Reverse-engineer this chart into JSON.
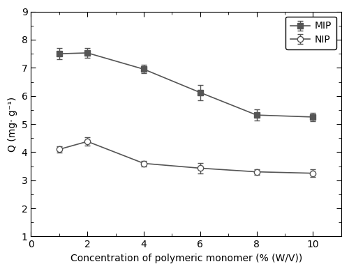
{
  "x": [
    1,
    2,
    4,
    6,
    8,
    10
  ],
  "mip_y": [
    7.5,
    7.53,
    6.95,
    6.12,
    5.32,
    5.25
  ],
  "mip_yerr": [
    0.2,
    0.18,
    0.15,
    0.28,
    0.2,
    0.15
  ],
  "nip_y": [
    4.1,
    4.38,
    3.6,
    3.43,
    3.3,
    3.25
  ],
  "nip_yerr": [
    0.12,
    0.15,
    0.1,
    0.18,
    0.1,
    0.13
  ],
  "xlabel": "Concentration of polymeric monomer (% (W/V))",
  "ylabel": "Q (mg· g⁻¹)",
  "xlim": [
    0,
    11
  ],
  "ylim": [
    1,
    9
  ],
  "yticks": [
    1,
    2,
    3,
    4,
    5,
    6,
    7,
    8,
    9
  ],
  "xticks": [
    0,
    2,
    4,
    6,
    8,
    10
  ],
  "legend_mip": "MIP",
  "legend_nip": "NIP",
  "line_color": "#555555",
  "mip_marker": "s",
  "nip_marker": "o",
  "marker_size": 6,
  "linewidth": 1.2,
  "capsize": 3,
  "background_color": "#ffffff"
}
